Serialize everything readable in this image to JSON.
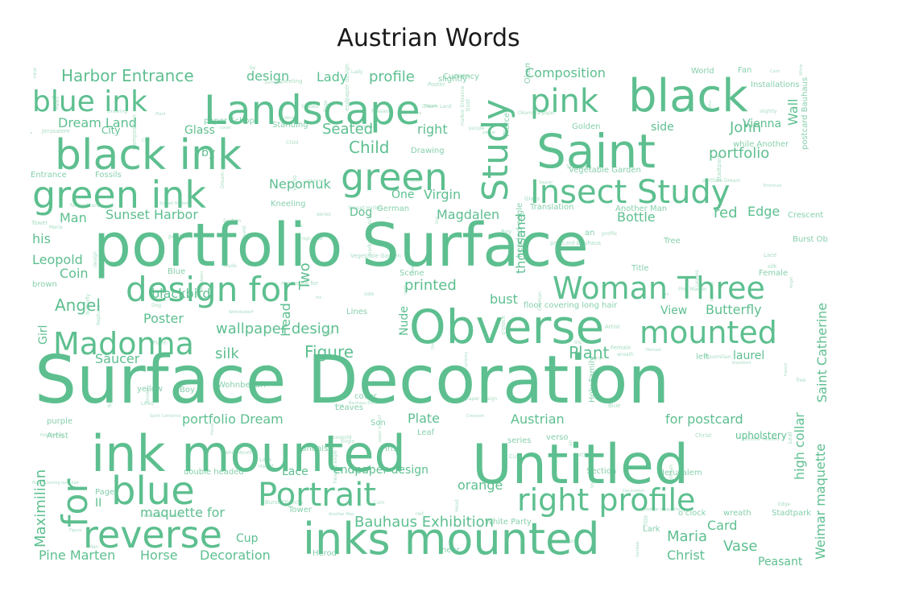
{
  "chart_data": {
    "type": "wordcloud",
    "title": "Austrian Words",
    "color": "#5dbf8f",
    "words": [
      "Surface Decoration",
      "portfolio Surface",
      "ink mounted",
      "Untitled",
      "Obverse",
      "inks mounted",
      "Saint",
      "black ink",
      "Landscape",
      "green ink",
      "green",
      "Study",
      "black",
      "blue",
      "Portrait",
      "reverse",
      "Madonna",
      "design for",
      "right profile",
      "Insect Study",
      "Woman Three",
      "mounted",
      "for",
      "pink",
      "blue ink",
      "Harbor Entrance",
      "Dream Land",
      "Sunset Harbor",
      "Butterfly",
      "Plant",
      "Figure",
      "silk",
      "wallpaper design",
      "Angel",
      "Child",
      "Seated",
      "Nepomuk",
      "Virgin",
      "Magdalen",
      "Bauhaus Exhibition",
      "maquette for",
      "Pine Marten",
      "Horse",
      "Decoration",
      "Christ",
      "Maria",
      "Vase",
      "Card",
      "Peasant",
      "Maximilian",
      "Weimar maquette",
      "Saint Catherine",
      "portfolio Dream",
      "Plate",
      "Austrian",
      "for postcard",
      "upholstery",
      "Composition",
      "design",
      "Lady",
      "profile",
      "Glass",
      "John",
      "portfolio",
      "Wall",
      "Vienna",
      "red",
      "Edge",
      "Bottle",
      "Tree",
      "Man",
      "Leopold",
      "Coin",
      "his",
      "brown",
      "Girl",
      "Poster",
      "Saucer",
      "blackbird",
      "printed",
      "bust",
      "Nude",
      "Two",
      "Head",
      "thousand",
      "View",
      "laurel",
      "left",
      "Lace",
      "endpaper design",
      "orange",
      "II",
      "Cup",
      "yellow",
      "Boy",
      "purple",
      "Artist",
      "Page",
      "double headed",
      "Leaves",
      "verso",
      "high collar",
      "o'clock",
      "Dog",
      "One",
      "German",
      "right",
      "Drawing",
      "Translation",
      "floor covering long hair",
      "Female",
      "Son",
      "series",
      "Lines",
      "cover",
      "Wohnbedarf",
      "slightly",
      "City",
      "World",
      "Fan",
      "postcard Bauhaus",
      "while Another",
      "side",
      "Golden",
      "Standing",
      "paper Schopf",
      "by",
      "Kneeling",
      "Scene",
      "an",
      "Title",
      "Another Man",
      "Vegetable Garden",
      "Pierced",
      "Okamura paper",
      "Neptune",
      "Fossils",
      "Entrance",
      "headed eagle",
      "Holy Family",
      "near",
      "White Party",
      "Currency",
      "Installations",
      "Crescent",
      "Burst Objects",
      "Jerusalem",
      "wreath",
      "Stadtpark",
      "Lark",
      "Section",
      "Tower",
      "Leaf",
      "Iris",
      "Herod",
      "Blue",
      "Sandals"
    ]
  }
}
